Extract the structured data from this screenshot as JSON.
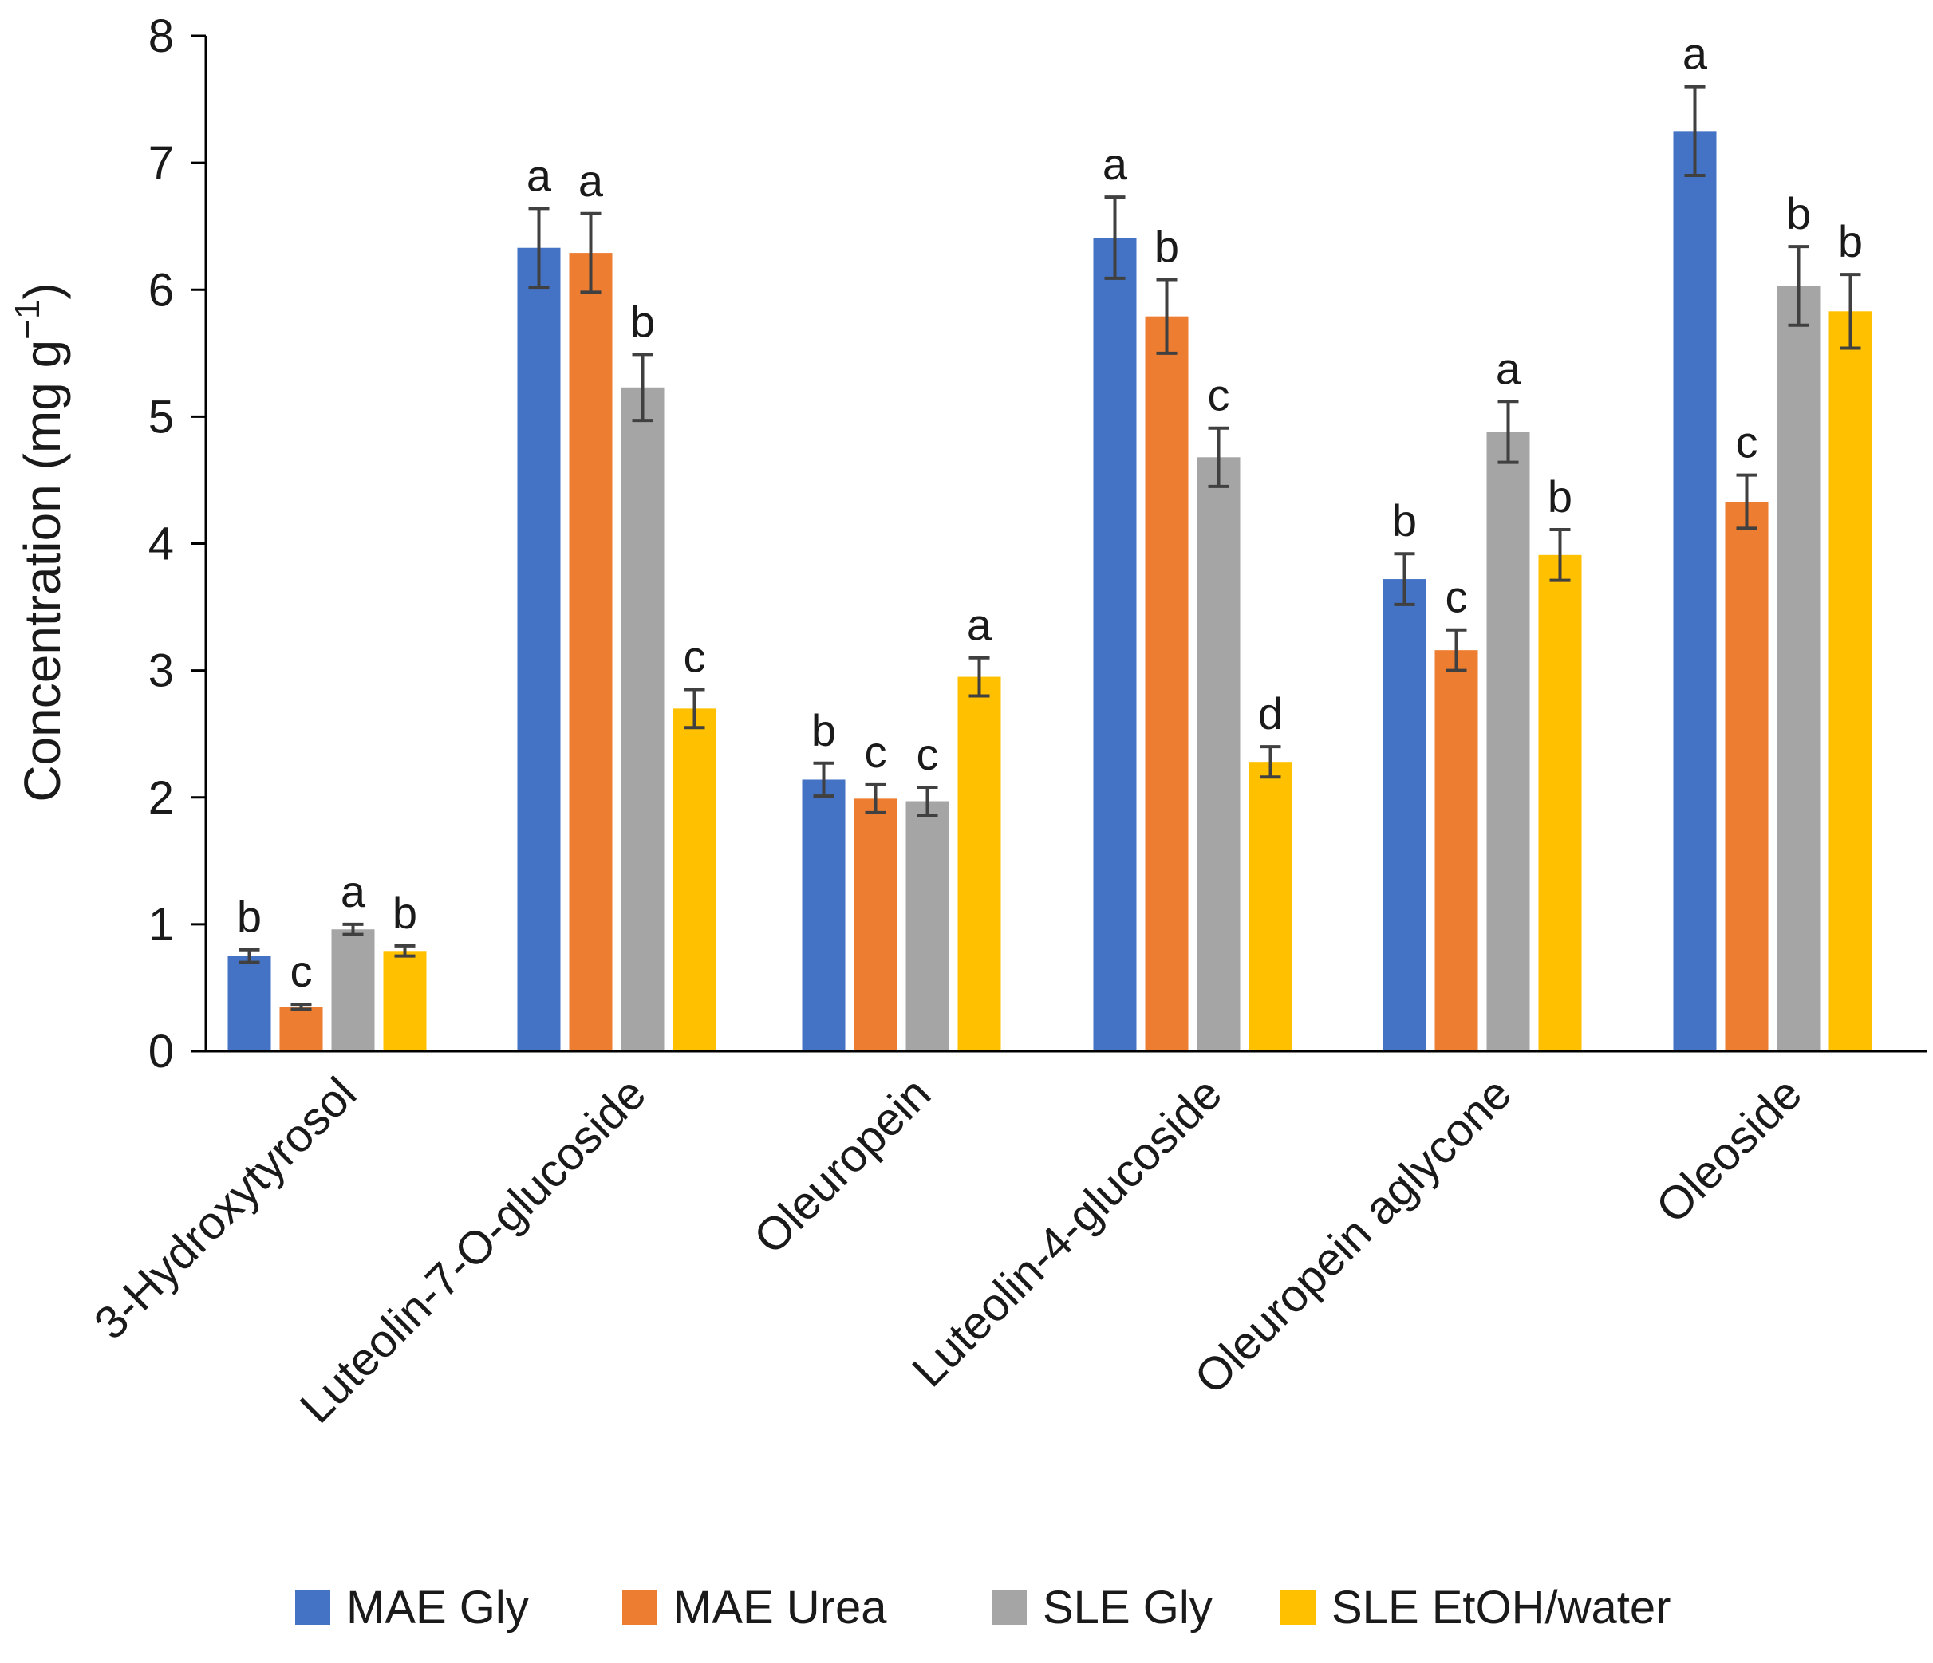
{
  "chart_data": {
    "type": "bar",
    "title": "",
    "xlabel": "",
    "ylabel": "Concentration (mg g",
    "ylabel_superscript": "−1",
    "ylabel_close": ")",
    "ylim": [
      0,
      8
    ],
    "yticks": [
      0,
      1,
      2,
      3,
      4,
      5,
      6,
      7,
      8
    ],
    "grid": false,
    "legend_position": "bottom",
    "categories": [
      "3-Hydroxytyrosol",
      "Luteolin-7-O-glucoside",
      "Oleuropein",
      "Luteolin-4-glucoside",
      "Oleuropein aglycone",
      "Oleoside"
    ],
    "series": [
      {
        "name": "MAE Gly",
        "color": "#4472C4",
        "values": [
          0.75,
          6.33,
          2.14,
          6.41,
          3.72,
          7.25
        ],
        "errors": [
          0.05,
          0.31,
          0.13,
          0.32,
          0.2,
          0.35
        ],
        "letters": [
          "b",
          "a",
          "b",
          "a",
          "b",
          "a"
        ]
      },
      {
        "name": "MAE Urea",
        "color": "#ED7D31",
        "values": [
          0.35,
          6.29,
          1.99,
          5.79,
          3.16,
          4.33
        ],
        "errors": [
          0.02,
          0.31,
          0.11,
          0.29,
          0.16,
          0.21
        ],
        "letters": [
          "c",
          "a",
          "c",
          "b",
          "c",
          "c"
        ]
      },
      {
        "name": "SLE Gly",
        "color": "#A5A5A5",
        "values": [
          0.96,
          5.23,
          1.97,
          4.68,
          4.88,
          6.03
        ],
        "errors": [
          0.04,
          0.26,
          0.11,
          0.23,
          0.24,
          0.31
        ],
        "letters": [
          "a",
          "b",
          "c",
          "c",
          "a",
          "b"
        ]
      },
      {
        "name": "SLE EtOH/water",
        "color": "#FFC000",
        "values": [
          0.79,
          2.7,
          2.95,
          2.28,
          3.91,
          5.83
        ],
        "errors": [
          0.04,
          0.15,
          0.15,
          0.12,
          0.2,
          0.29
        ],
        "letters": [
          "b",
          "c",
          "a",
          "d",
          "b",
          "b"
        ]
      }
    ],
    "error_bar_color": "#404040"
  }
}
